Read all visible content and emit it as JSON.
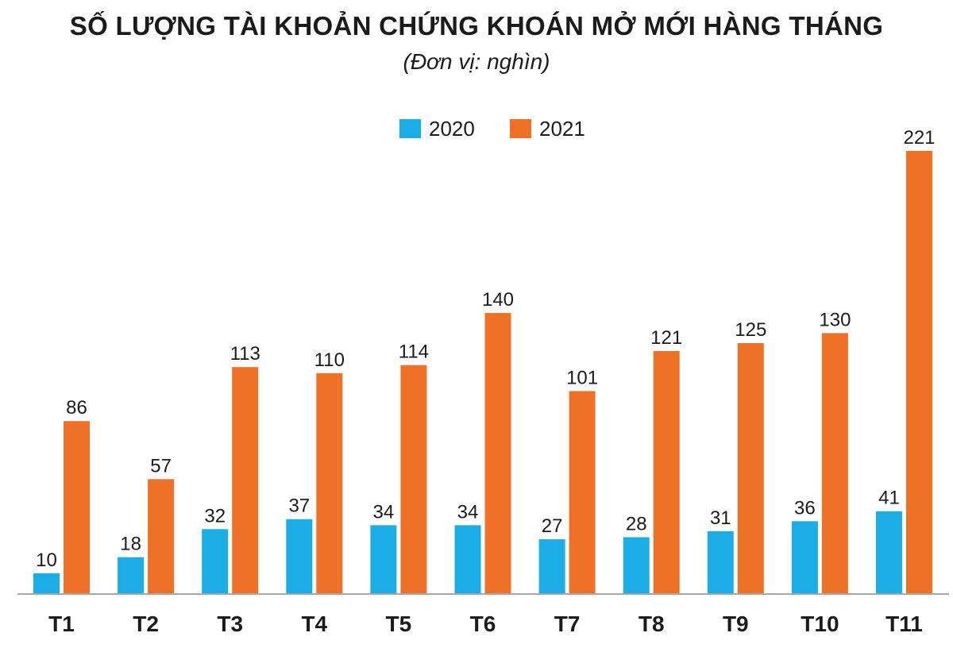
{
  "chart_data": {
    "type": "bar",
    "title": "SỐ LƯỢNG TÀI KHOẢN CHỨNG KHOÁN MỞ MỚI HÀNG THÁNG",
    "subtitle": "(Đơn vị: nghìn)",
    "categories": [
      "T1",
      "T2",
      "T3",
      "T4",
      "T5",
      "T6",
      "T7",
      "T8",
      "T9",
      "T10",
      "T11"
    ],
    "series": [
      {
        "name": "2020",
        "color": "#1cace6",
        "values": [
          10,
          18,
          32,
          37,
          34,
          34,
          27,
          28,
          31,
          36,
          41
        ]
      },
      {
        "name": "2021",
        "color": "#ee7127",
        "values": [
          86,
          57,
          113,
          110,
          114,
          140,
          101,
          121,
          125,
          130,
          221
        ]
      }
    ],
    "xlabel": "",
    "ylabel": "",
    "ylim": [
      0,
      221
    ],
    "grid": false,
    "legend_position": "top-center"
  }
}
